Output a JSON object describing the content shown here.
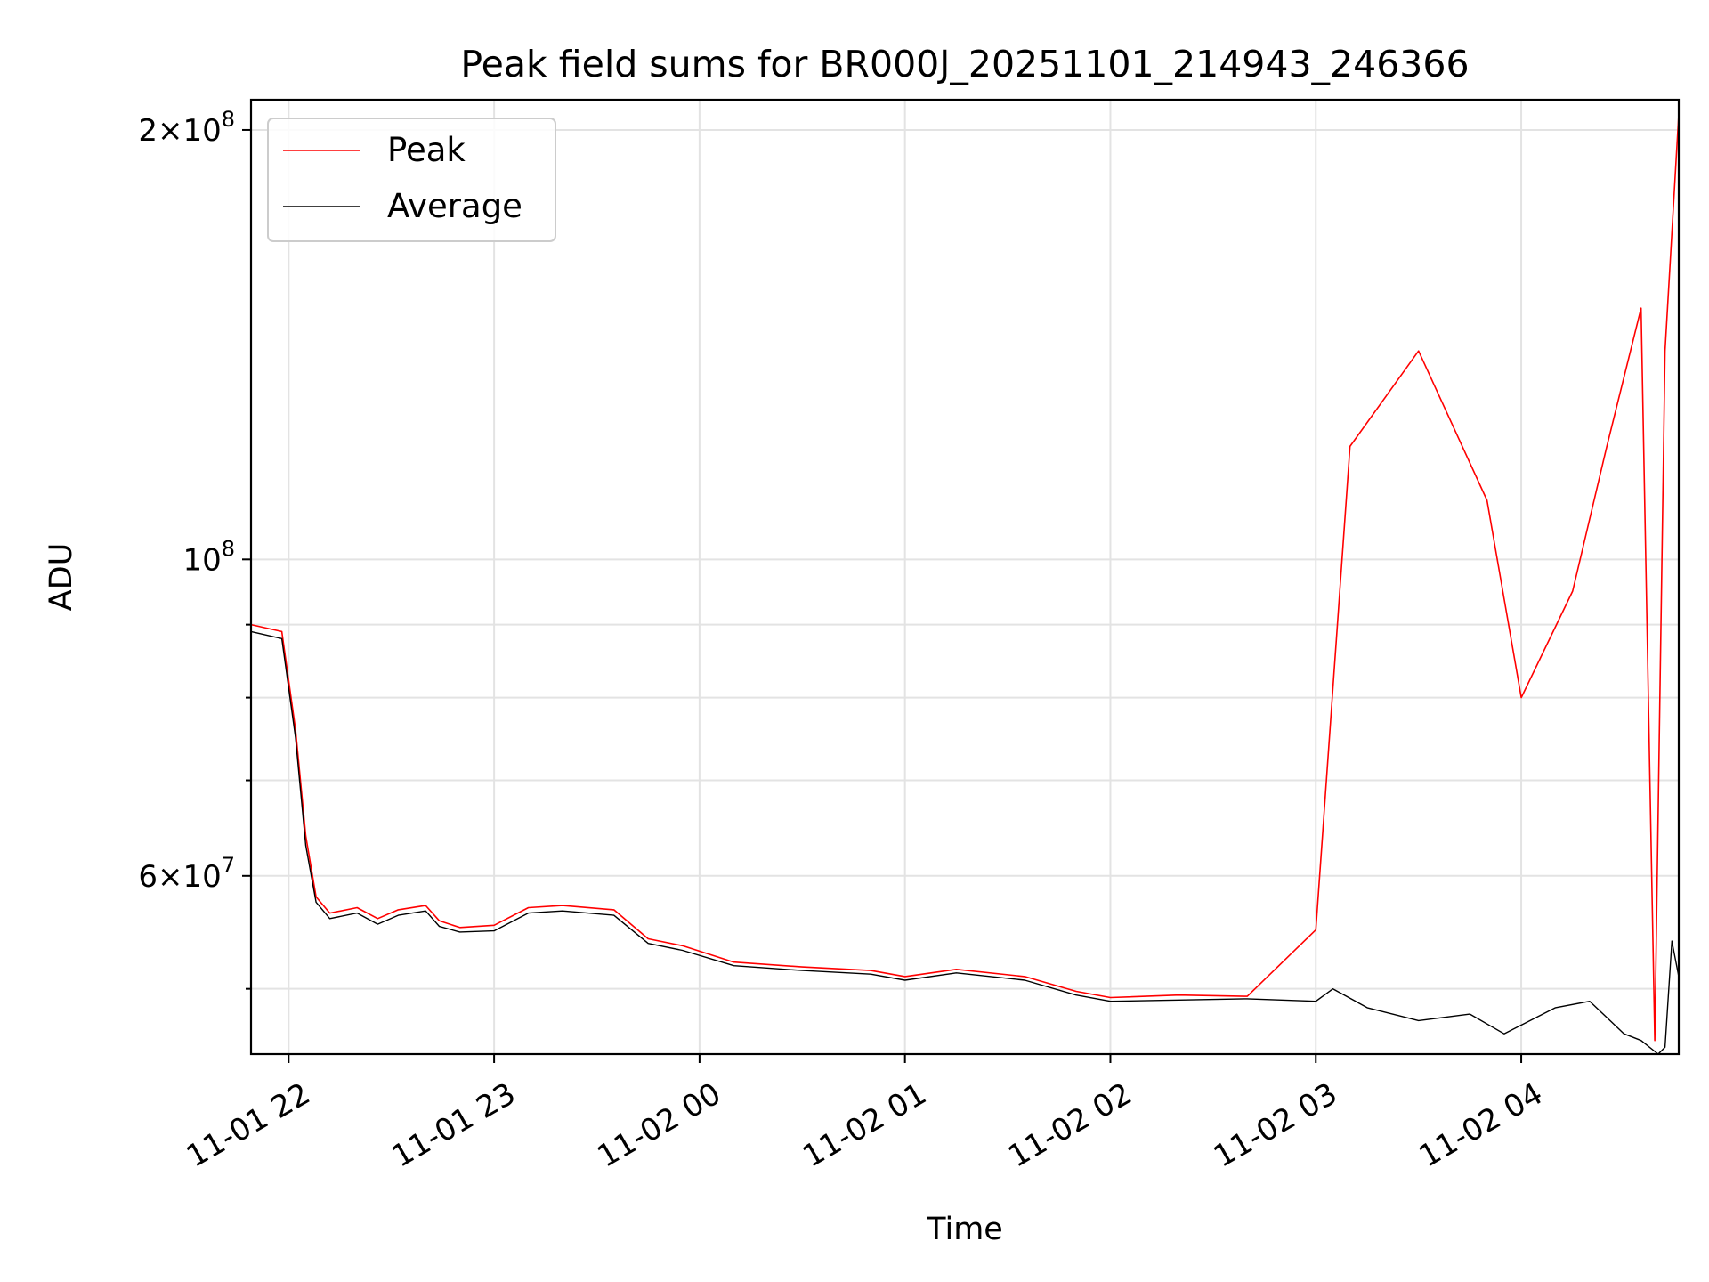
{
  "chart_data": {
    "type": "line",
    "title": "Peak field sums for BR000J_20251101_214943_246366",
    "xlabel": "Time",
    "ylabel": "ADU",
    "yscale": "log",
    "ylim": [
      45000000,
      210000000
    ],
    "xlim": [
      "2025-11-01 21:49",
      "2025-11-02 04:46"
    ],
    "x_ticks": [
      "11-01 22",
      "11-01 23",
      "11-02 00",
      "11-02 01",
      "11-02 02",
      "11-02 03",
      "11-02 04"
    ],
    "x_tick_times": [
      "2025-11-01 22:00",
      "2025-11-01 23:00",
      "2025-11-02 00:00",
      "2025-11-02 01:00",
      "2025-11-02 02:00",
      "2025-11-02 03:00",
      "2025-11-02 04:00"
    ],
    "y_ticks": [
      {
        "value": 60000000,
        "label_mantissa": "6",
        "label_exp": "7"
      },
      {
        "value": 100000000,
        "label_mantissa": "",
        "label_exp": "8"
      },
      {
        "value": 200000000,
        "label_mantissa": "2",
        "label_exp": "8"
      }
    ],
    "y_minor_ticks": [
      50000000,
      70000000,
      80000000,
      90000000
    ],
    "grid": true,
    "legend_position": "top-left",
    "series": [
      {
        "name": "Peak",
        "color": "#ff0000",
        "x": [
          "2025-11-01 21:49",
          "2025-11-01 21:58",
          "2025-11-01 22:02",
          "2025-11-01 22:05",
          "2025-11-01 22:08",
          "2025-11-01 22:12",
          "2025-11-01 22:20",
          "2025-11-01 22:26",
          "2025-11-01 22:32",
          "2025-11-01 22:40",
          "2025-11-01 22:44",
          "2025-11-01 22:50",
          "2025-11-01 23:00",
          "2025-11-01 23:10",
          "2025-11-01 23:20",
          "2025-11-01 23:35",
          "2025-11-01 23:45",
          "2025-11-01 23:55",
          "2025-11-02 00:10",
          "2025-11-02 00:30",
          "2025-11-02 00:50",
          "2025-11-02 01:00",
          "2025-11-02 01:15",
          "2025-11-02 01:35",
          "2025-11-02 01:50",
          "2025-11-02 02:00",
          "2025-11-02 02:20",
          "2025-11-02 02:40",
          "2025-11-02 03:00",
          "2025-11-02 03:10",
          "2025-11-02 03:30",
          "2025-11-02 03:50",
          "2025-11-02 04:00",
          "2025-11-02 04:15",
          "2025-11-02 04:25",
          "2025-11-02 04:35",
          "2025-11-02 04:39",
          "2025-11-02 04:42",
          "2025-11-02 04:46"
        ],
        "y": [
          90000000,
          89000000,
          76000000,
          64000000,
          58000000,
          56500000,
          57000000,
          56000000,
          56800000,
          57200000,
          55800000,
          55200000,
          55400000,
          57000000,
          57200000,
          56800000,
          54200000,
          53600000,
          52200000,
          51800000,
          51500000,
          51000000,
          51600000,
          51000000,
          49800000,
          49300000,
          49500000,
          49400000,
          55000000,
          120000000,
          140000000,
          110000000,
          80000000,
          95000000,
          120000000,
          150000000,
          46000000,
          140000000,
          205000000
        ]
      },
      {
        "name": "Average",
        "color": "#000000",
        "x": [
          "2025-11-01 21:49",
          "2025-11-01 21:58",
          "2025-11-01 22:02",
          "2025-11-01 22:05",
          "2025-11-01 22:08",
          "2025-11-01 22:12",
          "2025-11-01 22:20",
          "2025-11-01 22:26",
          "2025-11-01 22:32",
          "2025-11-01 22:40",
          "2025-11-01 22:44",
          "2025-11-01 22:50",
          "2025-11-01 23:00",
          "2025-11-01 23:10",
          "2025-11-01 23:20",
          "2025-11-01 23:35",
          "2025-11-01 23:45",
          "2025-11-01 23:55",
          "2025-11-02 00:10",
          "2025-11-02 00:30",
          "2025-11-02 00:50",
          "2025-11-02 01:00",
          "2025-11-02 01:15",
          "2025-11-02 01:35",
          "2025-11-02 01:50",
          "2025-11-02 02:00",
          "2025-11-02 02:20",
          "2025-11-02 02:40",
          "2025-11-02 03:00",
          "2025-11-02 03:05",
          "2025-11-02 03:15",
          "2025-11-02 03:30",
          "2025-11-02 03:45",
          "2025-11-02 03:55",
          "2025-11-02 04:10",
          "2025-11-02 04:20",
          "2025-11-02 04:30",
          "2025-11-02 04:35",
          "2025-11-02 04:40",
          "2025-11-02 04:42",
          "2025-11-02 04:44",
          "2025-11-02 04:46"
        ],
        "y": [
          89000000,
          88000000,
          75000000,
          63000000,
          57500000,
          56000000,
          56500000,
          55500000,
          56300000,
          56700000,
          55300000,
          54800000,
          54900000,
          56500000,
          56700000,
          56300000,
          53800000,
          53200000,
          51900000,
          51500000,
          51200000,
          50700000,
          51300000,
          50700000,
          49500000,
          49000000,
          49100000,
          49200000,
          49000000,
          50000000,
          48500000,
          47500000,
          48000000,
          46500000,
          48500000,
          49000000,
          46500000,
          46000000,
          45000000,
          45500000,
          54000000,
          51000000
        ]
      }
    ]
  }
}
